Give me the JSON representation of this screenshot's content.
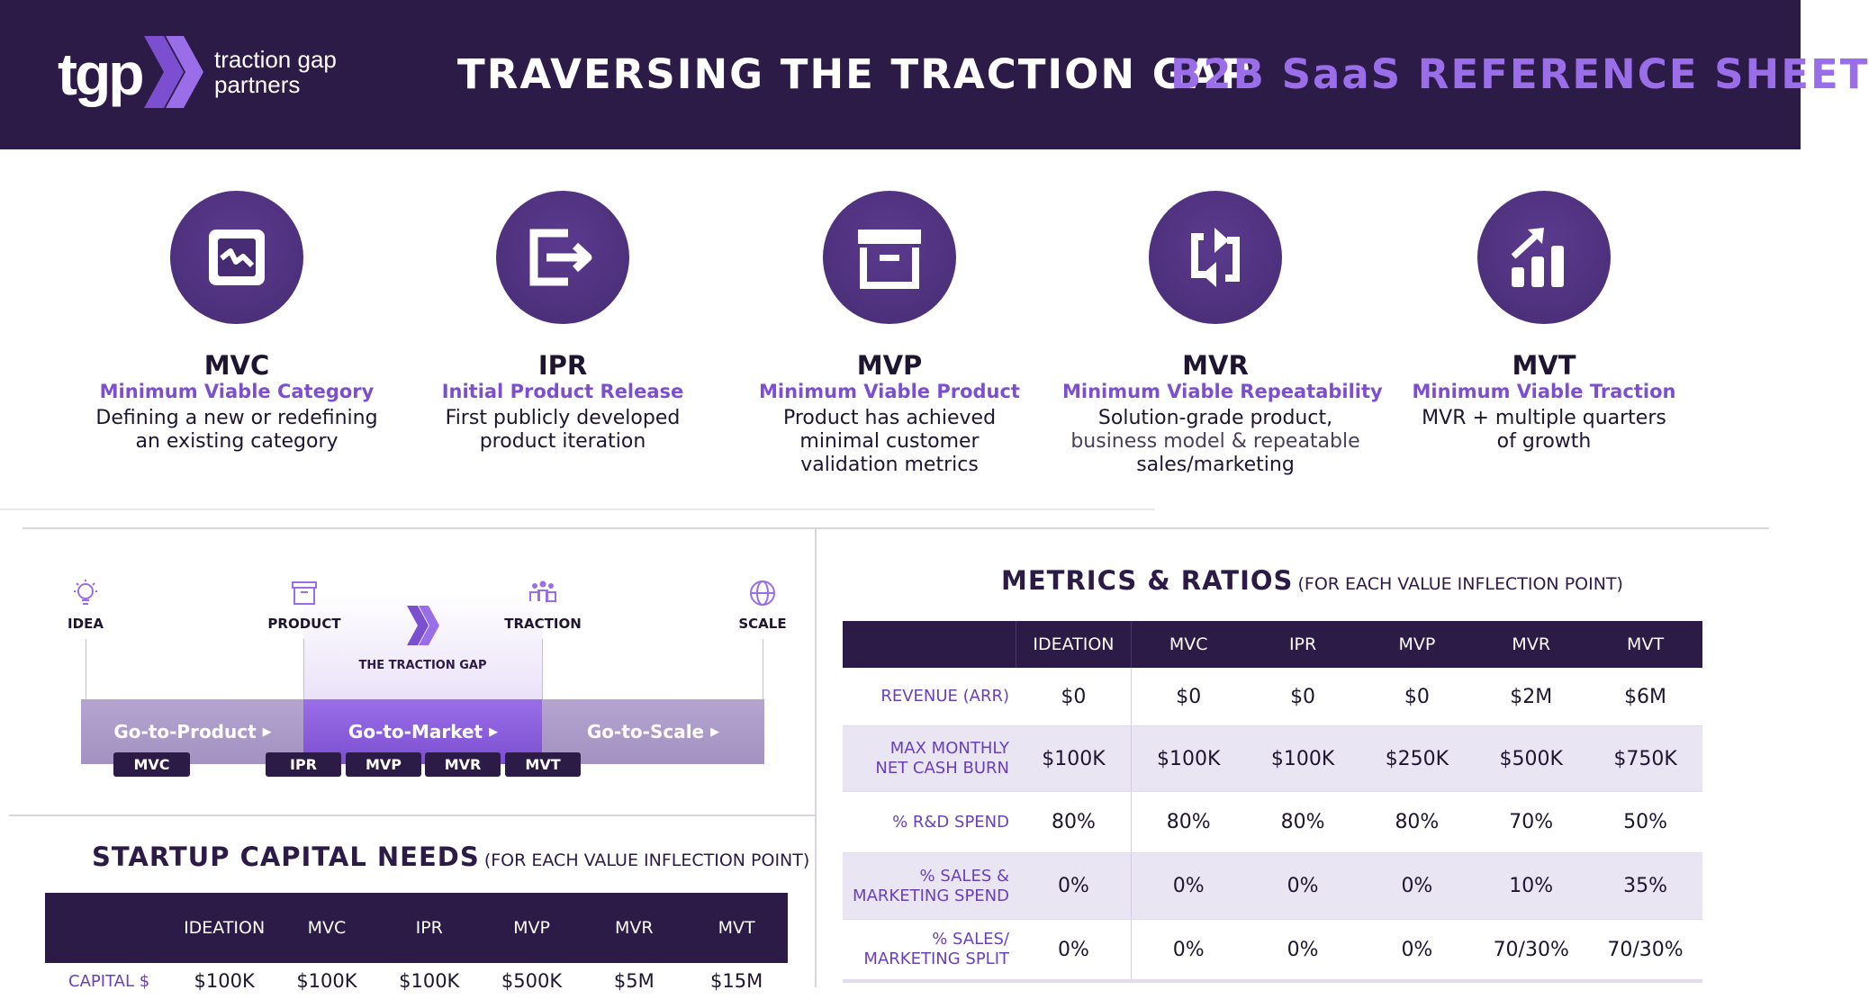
{
  "header": {
    "logo_mark": "tgp",
    "logo_name_line1": "traction gap",
    "logo_name_line2": "partners",
    "title": "TRAVERSING THE TRACTION GAP",
    "subtitle": "B2B SaaS REFERENCE SHEET"
  },
  "colors": {
    "brand_dark": "#2c1a47",
    "accent": "#9a6ee8",
    "accent_dark": "#7c4fd0"
  },
  "stages": [
    {
      "icon": "category-icon",
      "abbr": "MVC",
      "full": "Minimum Viable Category",
      "desc1": "Defining a new or redefining",
      "desc2": "an existing category",
      "desc3": ""
    },
    {
      "icon": "release-icon",
      "abbr": "IPR",
      "full": "Initial Product Release",
      "desc1": "First publicly developed",
      "desc2": "product iteration",
      "desc3": ""
    },
    {
      "icon": "archive-box-icon",
      "abbr": "MVP",
      "full": "Minimum Viable Product",
      "desc1": "Product has achieved",
      "desc2": "minimal customer",
      "desc3": "validation metrics"
    },
    {
      "icon": "repeat-icon",
      "abbr": "MVR",
      "full": "Minimum Viable Repeatability",
      "desc1": "Solution-grade product,",
      "desc2": "business model &  repeatable",
      "desc3": "sales/marketing"
    },
    {
      "icon": "growth-chart-icon",
      "abbr": "MVT",
      "full": "Minimum Viable Traction",
      "desc1": "MVR + multiple quarters",
      "desc2": "of growth",
      "desc3": ""
    }
  ],
  "timeline": {
    "milestones": [
      "IDEA",
      "PRODUCT",
      "TRACTION",
      "SCALE"
    ],
    "gap_label": "THE TRACTION GAP",
    "phases": [
      "Go-to-Product",
      "Go-to-Market",
      "Go-to-Scale"
    ],
    "pills": [
      "MVC",
      "IPR",
      "MVP",
      "MVR",
      "MVT"
    ]
  },
  "capital": {
    "title": "STARTUP CAPITAL NEEDS",
    "subtitle": "(FOR EACH VALUE INFLECTION POINT)",
    "columns": [
      "",
      "IDEATION",
      "MVC",
      "IPR",
      "MVP",
      "MVR",
      "MVT"
    ],
    "row": [
      "CAPITAL $",
      "$100K",
      "$100K",
      "$100K",
      "$500K",
      "$5M",
      "$15M"
    ]
  },
  "metrics": {
    "title": "METRICS & RATIOS",
    "subtitle": "(FOR EACH VALUE INFLECTION POINT)",
    "columns": [
      "IDEATION",
      "MVC",
      "IPR",
      "MVP",
      "MVR",
      "MVT"
    ],
    "rows": [
      {
        "label1": "REVENUE (ARR)",
        "label2": "",
        "values": [
          "$0",
          "$0",
          "$0",
          "$0",
          "$2M",
          "$6M"
        ]
      },
      {
        "label1": "MAX MONTHLY",
        "label2": "NET CASH BURN",
        "values": [
          "$100K",
          "$100K",
          "$100K",
          "$250K",
          "$500K",
          "$750K"
        ]
      },
      {
        "label1": "% R&D SPEND",
        "label2": "",
        "values": [
          "80%",
          "80%",
          "80%",
          "80%",
          "70%",
          "50%"
        ]
      },
      {
        "label1": "% SALES &",
        "label2": "MARKETING SPEND",
        "values": [
          "0%",
          "0%",
          "0%",
          "0%",
          "10%",
          "35%"
        ]
      },
      {
        "label1": "% SALES/",
        "label2": "MARKETING SPLIT",
        "values": [
          "0%",
          "0%",
          "0%",
          "0%",
          "70/30%",
          "70/30%"
        ]
      }
    ]
  }
}
